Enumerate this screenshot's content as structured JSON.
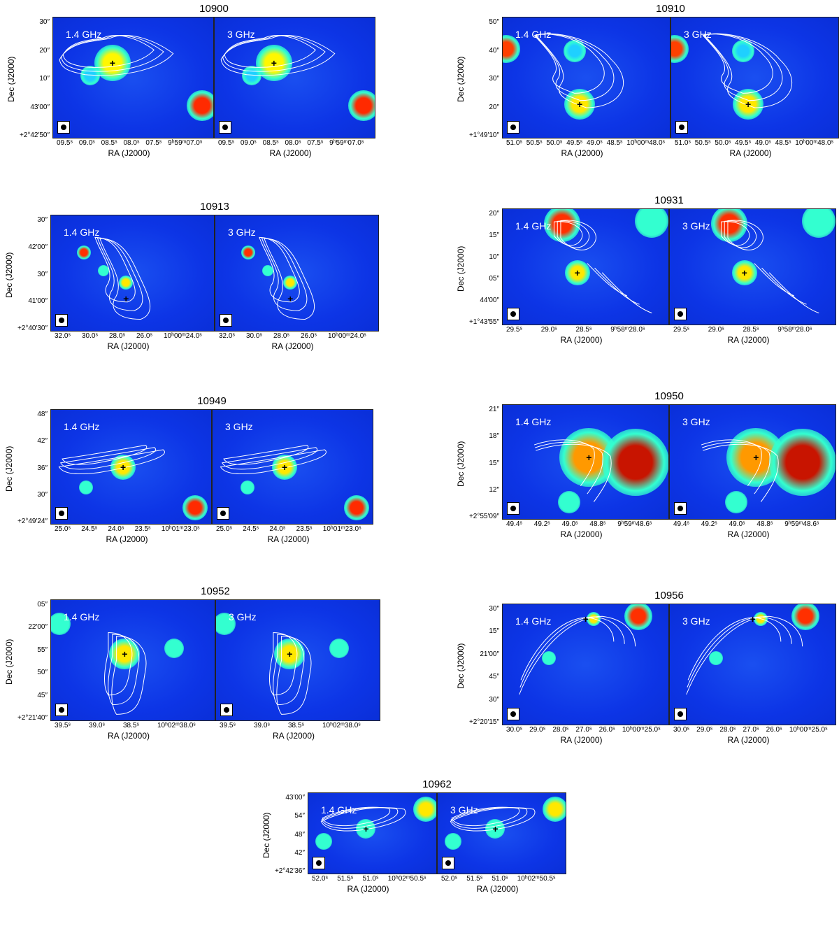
{
  "figures": [
    {
      "title": "10900",
      "panels": [
        "1.4 GHz",
        "3 GHz"
      ],
      "y_ticks": [
        "30″",
        "20″",
        "10″",
        "43′00″",
        "+2°42′50″"
      ],
      "x_ticks": [
        "09.5ˢ",
        "09.0ˢ",
        "08.5ˢ",
        "08.0ˢ",
        "07.5ˢ",
        "9ʰ59ᵐ07.0ˢ"
      ],
      "ylabel": "Dec (J2000)",
      "xlabel": "RA (J2000)"
    },
    {
      "title": "10910",
      "panels": [
        "1.4 GHz",
        "3 GHz"
      ],
      "y_ticks": [
        "50″",
        "40″",
        "30″",
        "20″",
        "+1°49′10″"
      ],
      "x_ticks": [
        "51.0ˢ",
        "50.5ˢ",
        "50.0ˢ",
        "49.5ˢ",
        "49.0ˢ",
        "48.5ˢ",
        "10ʰ00ᵐ48.0ˢ"
      ],
      "ylabel": "Dec (J2000)",
      "xlabel": "RA (J2000)"
    },
    {
      "title": "10913",
      "panels": [
        "1.4 GHz",
        "3 GHz"
      ],
      "y_ticks": [
        "30″",
        "42′00″",
        "30″",
        "41′00″",
        "+2°40′30″"
      ],
      "x_ticks": [
        "32.0ˢ",
        "30.0ˢ",
        "28.0ˢ",
        "26.0ˢ",
        "10ʰ00ᵐ24.0ˢ"
      ],
      "ylabel": "Dec (J2000)",
      "xlabel": "RA (J2000)"
    },
    {
      "title": "10931",
      "panels": [
        "1.4 GHz",
        "3 GHz"
      ],
      "y_ticks": [
        "20″",
        "15″",
        "10″",
        "05″",
        "44′00″",
        "+1°43′55″"
      ],
      "x_ticks": [
        "29.5ˢ",
        "29.0ˢ",
        "28.5ˢ",
        "9ʰ58ᵐ28.0ˢ"
      ],
      "ylabel": "Dec (J2000)",
      "xlabel": "RA (J2000)"
    },
    {
      "title": "10949",
      "panels": [
        "1.4 GHz",
        "3 GHz"
      ],
      "y_ticks": [
        "48″",
        "42″",
        "36″",
        "30″",
        "+2°49′24″"
      ],
      "x_ticks": [
        "25.0ˢ",
        "24.5ˢ",
        "24.0ˢ",
        "23.5ˢ",
        "10ʰ01ᵐ23.0ˢ"
      ],
      "ylabel": "Dec (J2000)",
      "xlabel": "RA (J2000)"
    },
    {
      "title": "10950",
      "panels": [
        "1.4 GHz",
        "3 GHz"
      ],
      "y_ticks": [
        "21″",
        "18″",
        "15″",
        "12″",
        "+2°55′09″"
      ],
      "x_ticks": [
        "49.4ˢ",
        "49.2ˢ",
        "49.0ˢ",
        "48.8ˢ",
        "9ʰ59ᵐ48.6ˢ"
      ],
      "ylabel": "Dec (J2000)",
      "xlabel": "RA (J2000)"
    },
    {
      "title": "10952",
      "panels": [
        "1.4 GHz",
        "3 GHz"
      ],
      "y_ticks": [
        "05″",
        "22′00″",
        "55″",
        "50″",
        "45″",
        "+2°21′40″"
      ],
      "x_ticks": [
        "39.5ˢ",
        "39.0ˢ",
        "38.5ˢ",
        "10ʰ02ᵐ38.0ˢ"
      ],
      "ylabel": "Dec (J2000)",
      "xlabel": "RA (J2000)"
    },
    {
      "title": "10956",
      "panels": [
        "1.4 GHz",
        "3 GHz"
      ],
      "y_ticks": [
        "30″",
        "15″",
        "21′00″",
        "45″",
        "30″",
        "+2°20′15″"
      ],
      "x_ticks": [
        "30.0ˢ",
        "29.0ˢ",
        "28.0ˢ",
        "27.0ˢ",
        "26.0ˢ",
        "10ʰ00ᵐ25.0ˢ"
      ],
      "ylabel": "Dec (J2000)",
      "xlabel": "RA (J2000)"
    },
    {
      "title": "10962",
      "panels": [
        "1.4 GHz",
        "3 GHz"
      ],
      "y_ticks": [
        "43′00″",
        "54″",
        "48″",
        "42″",
        "+2°42′36″"
      ],
      "x_ticks": [
        "52.0ˢ",
        "51.5ˢ",
        "51.0ˢ",
        "10ʰ02ᵐ50.5ˢ"
      ],
      "ylabel": "Dec (J2000)",
      "xlabel": "RA (J2000)"
    }
  ],
  "colors": {
    "background_blue": "#0d35e6",
    "source_hot": "#ff2a00",
    "source_warm": "#ffd000",
    "source_cool": "#33ffd0",
    "contour": "#ffffff"
  }
}
